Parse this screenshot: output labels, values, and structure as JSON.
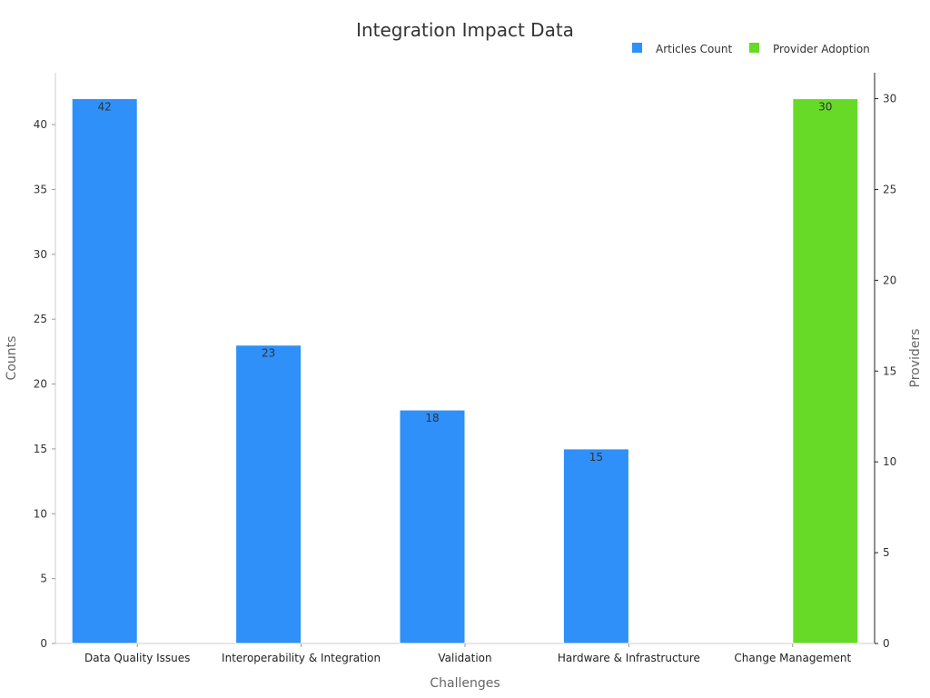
{
  "chart_data": {
    "type": "bar",
    "title": "Integration Impact Data",
    "xlabel": "Challenges",
    "ylabel_left": "Counts",
    "ylabel_right": "Providers",
    "categories": [
      "Data Quality Issues",
      "Interoperability & Integration",
      "Validation",
      "Hardware & Infrastructure",
      "Change Management"
    ],
    "series": [
      {
        "name": "Articles Count",
        "axis": "left",
        "color": "#2E90F8",
        "values": [
          42,
          23,
          18,
          15,
          null
        ],
        "labels": [
          "42",
          "23",
          "18",
          "15",
          ""
        ]
      },
      {
        "name": "Provider Adoption",
        "axis": "right",
        "color": "#66DA26",
        "values": [
          null,
          null,
          null,
          null,
          30
        ],
        "labels": [
          "",
          "",
          "",
          "",
          "30"
        ]
      }
    ],
    "ylim_left": [
      0,
      44
    ],
    "yticks_left": [
      0,
      5,
      10,
      15,
      20,
      25,
      30,
      35,
      40
    ],
    "yticks_left_labels": [
      "0",
      "5",
      "10",
      "15",
      "20",
      "25",
      "30",
      "35",
      "40"
    ],
    "ylim_right": [
      0,
      31.43
    ],
    "yticks_right": [
      0,
      5,
      10,
      15,
      20,
      25,
      30
    ],
    "yticks_right_labels": [
      "0",
      "5",
      "10",
      "15",
      "20",
      "25",
      "30"
    ],
    "legend_position": "top-right",
    "grid": false
  }
}
